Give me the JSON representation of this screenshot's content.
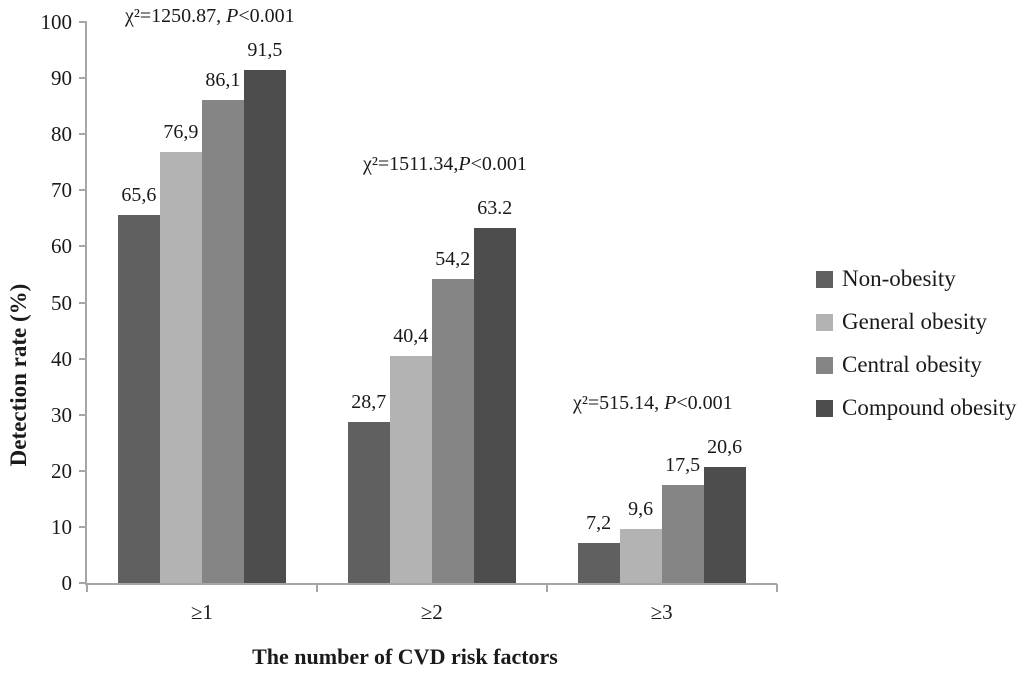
{
  "chart_data": {
    "type": "bar",
    "title": "",
    "xlabel": "The number of CVD risk factors",
    "ylabel": "Detection rate (%)",
    "ylim": [
      0,
      100
    ],
    "yticks": [
      0,
      10,
      20,
      30,
      40,
      50,
      60,
      70,
      80,
      90,
      100
    ],
    "grid": false,
    "legend_position": "right",
    "categories": [
      "≥1",
      "≥2",
      "≥3"
    ],
    "series": [
      {
        "name": "Non-obesity",
        "color": "#606060",
        "values": [
          65.6,
          28.7,
          7.2
        ],
        "labels": [
          "65,6",
          "28,7",
          "7,2"
        ]
      },
      {
        "name": "General obesity",
        "color": "#b3b3b3",
        "values": [
          76.9,
          40.4,
          9.6
        ],
        "labels": [
          "76,9",
          "40,4",
          "9,6"
        ]
      },
      {
        "name": "Central obesity",
        "color": "#858585",
        "values": [
          86.1,
          54.2,
          17.5
        ],
        "labels": [
          "86,1",
          "54,2",
          "17,5"
        ]
      },
      {
        "name": "Compound obesity",
        "color": "#4d4d4d",
        "values": [
          91.5,
          63.2,
          20.6
        ],
        "labels": [
          "91,5",
          "63.2",
          "20,6"
        ]
      }
    ],
    "annotations": [
      {
        "stat": "χ²=1250.87, ",
        "p_italic": "P",
        "p_rest": "<0.001"
      },
      {
        "stat": "χ²=1511.34,",
        "p_italic": "P",
        "p_rest": "<0.001"
      },
      {
        "stat": "χ²=515.14, ",
        "p_italic": "P",
        "p_rest": "<0.001"
      }
    ],
    "colors": {
      "axis": "#a6a6a6",
      "text": "#1a1a1a",
      "background": "#ffffff"
    }
  }
}
